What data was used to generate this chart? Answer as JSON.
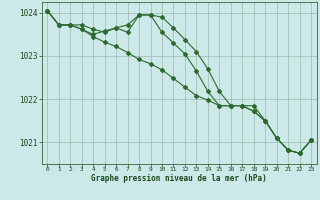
{
  "background_color": "#cce8e8",
  "plot_bg_color": "#cce8e8",
  "line_color": "#2d6a2d",
  "grid_color": "#99bbaa",
  "text_color": "#1a4a1a",
  "xlabel": "Graphe pression niveau de la mer (hPa)",
  "xlim": [
    -0.5,
    23.5
  ],
  "ylim": [
    1020.5,
    1024.25
  ],
  "yticks": [
    1021,
    1022,
    1023,
    1024
  ],
  "xticks": [
    0,
    1,
    2,
    3,
    4,
    5,
    6,
    7,
    8,
    9,
    10,
    11,
    12,
    13,
    14,
    15,
    16,
    17,
    18,
    19,
    20,
    21,
    22,
    23
  ],
  "series1_x": [
    0,
    1,
    2,
    3,
    4,
    5,
    6,
    7,
    8,
    9,
    10,
    11,
    12,
    13,
    14,
    15,
    16,
    17,
    18,
    19,
    20,
    21,
    22,
    23
  ],
  "series1_y": [
    1024.05,
    1023.72,
    1023.72,
    1023.72,
    1023.62,
    1023.55,
    1023.65,
    1023.72,
    1023.95,
    1023.95,
    1023.9,
    1023.65,
    1023.38,
    1023.1,
    1022.7,
    1022.18,
    1021.85,
    1021.85,
    1021.72,
    1021.5,
    1021.1,
    1020.82,
    1020.75,
    1021.05
  ],
  "series2_x": [
    0,
    1,
    2,
    3,
    4,
    5,
    6,
    7,
    8,
    9,
    10,
    11,
    12,
    13,
    14,
    15,
    16,
    17,
    18,
    19,
    20,
    21,
    22,
    23
  ],
  "series2_y": [
    1024.05,
    1023.72,
    1023.72,
    1023.62,
    1023.5,
    1023.58,
    1023.65,
    1023.55,
    1023.95,
    1023.95,
    1023.55,
    1023.3,
    1023.05,
    1022.65,
    1022.18,
    1021.85,
    1021.85,
    1021.85,
    1021.85,
    1021.5,
    1021.1,
    1020.82,
    1020.75,
    1021.05
  ],
  "series3_x": [
    0,
    1,
    2,
    3,
    4,
    5,
    6,
    7,
    8,
    9,
    10,
    11,
    12,
    13,
    14,
    15,
    16,
    17,
    18,
    19,
    20,
    21,
    22,
    23
  ],
  "series3_y": [
    1024.05,
    1023.72,
    1023.72,
    1023.62,
    1023.45,
    1023.32,
    1023.22,
    1023.08,
    1022.92,
    1022.82,
    1022.68,
    1022.48,
    1022.28,
    1022.08,
    1021.98,
    1021.85,
    1021.85,
    1021.85,
    1021.72,
    1021.5,
    1021.1,
    1020.82,
    1020.75,
    1021.05
  ]
}
